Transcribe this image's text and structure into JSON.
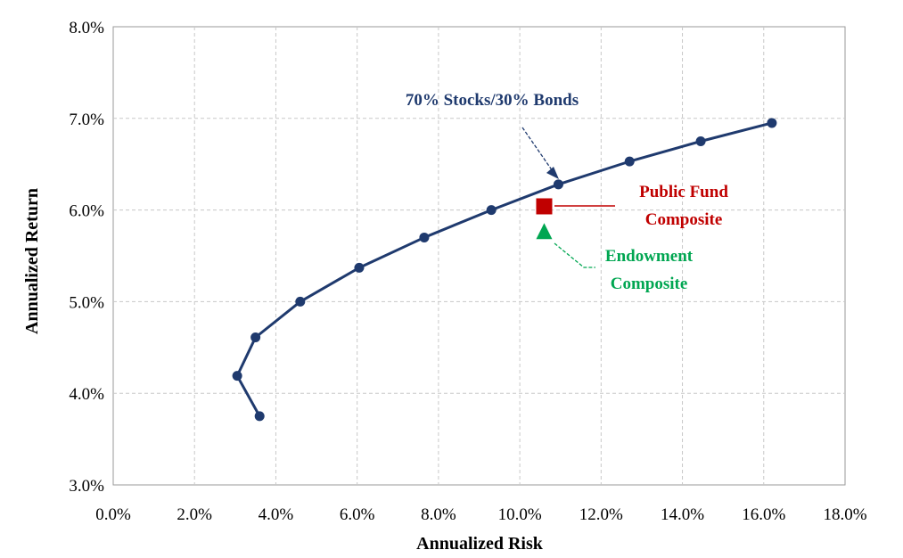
{
  "chart_data": {
    "type": "scatter",
    "title": "",
    "xlabel": "Annualized Risk",
    "ylabel": "Annualized Return",
    "xlim": [
      0,
      18
    ],
    "ylim": [
      3,
      8
    ],
    "x_ticks": [
      "0.0%",
      "2.0%",
      "4.0%",
      "6.0%",
      "8.0%",
      "10.0%",
      "12.0%",
      "14.0%",
      "16.0%",
      "18.0%"
    ],
    "y_ticks": [
      "3.0%",
      "4.0%",
      "5.0%",
      "6.0%",
      "7.0%",
      "8.0%"
    ],
    "grid": true,
    "series": [
      {
        "name": "",
        "mode": "line+markers",
        "color": "#1f3a6e",
        "x": [
          3.6,
          3.05,
          3.5,
          4.6,
          6.05,
          7.65,
          9.3,
          10.95,
          12.7,
          14.45,
          16.2
        ],
        "y": [
          3.75,
          4.19,
          4.61,
          5.0,
          5.37,
          5.7,
          6.0,
          6.28,
          6.53,
          6.75,
          6.95
        ]
      },
      {
        "name": "Public Fund Composite",
        "mode": "marker",
        "marker": "square",
        "color": "#c00000",
        "x": [
          10.6
        ],
        "y": [
          6.04
        ]
      },
      {
        "name": "Endowment Composite",
        "mode": "marker",
        "marker": "triangle",
        "color": "#00a651",
        "x": [
          10.6
        ],
        "y": [
          5.76
        ]
      }
    ],
    "annotations": [
      {
        "lines": [
          "70% Stocks/30% Bonds"
        ],
        "color": "#1f3a6e"
      },
      {
        "lines": [
          "Public Fund",
          "Composite"
        ],
        "color": "#c00000"
      },
      {
        "lines": [
          "Endowment",
          "Composite"
        ],
        "color": "#00a651"
      }
    ]
  }
}
